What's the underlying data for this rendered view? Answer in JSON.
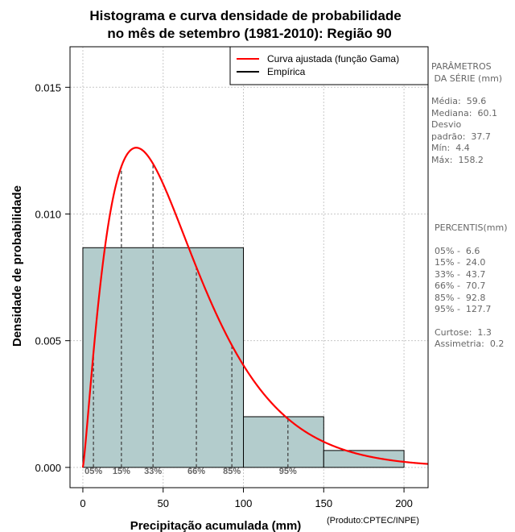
{
  "chart_data": {
    "type": "histogram",
    "title_line1": "Histograma e curva densidade de probabilidade",
    "title_line2": "no mês de setembro (1981-2010): Região 90",
    "xlabel": "Precipitação acumulada (mm)",
    "ylabel": "Densidade de probabilidade",
    "credit": "(Produto:CPTEC/INPE)",
    "xlim": [
      -8,
      215
    ],
    "ylim": [
      -0.0008,
      0.0166
    ],
    "x_ticks": [
      0,
      50,
      100,
      150,
      200
    ],
    "x_tick_labels": [
      "0",
      "50",
      "100",
      "150",
      "200"
    ],
    "y_ticks": [
      0.0,
      0.005,
      0.01,
      0.015
    ],
    "y_tick_labels": [
      "0.000",
      "0.005",
      "0.010",
      "0.015"
    ],
    "grid": true,
    "bins": [
      {
        "start": 0,
        "end": 100,
        "density": 0.00867
      },
      {
        "start": 100,
        "end": 150,
        "density": 0.002
      },
      {
        "start": 150,
        "end": 200,
        "density": 0.000667
      }
    ],
    "bin_color": "#b3cccc",
    "gamma_fit": {
      "shape": 2.26,
      "scale": 26.4,
      "color": "#ff0000"
    },
    "percentile_markers": [
      {
        "label": "05%",
        "value": 6.6
      },
      {
        "label": "15%",
        "value": 24.0
      },
      {
        "label": "33%",
        "value": 43.7
      },
      {
        "label": "66%",
        "value": 70.7
      },
      {
        "label": "85%",
        "value": 92.8
      },
      {
        "label": "95%",
        "value": 127.7
      }
    ],
    "legend": [
      {
        "label": "Curva ajustada (função Gama)",
        "color": "#ff0000"
      },
      {
        "label": "Empírica",
        "color": "#000000"
      }
    ],
    "legend_position": "top-right"
  },
  "params_panel": {
    "heading1": "PARÂMETROS",
    "heading2": " DA SÉRIE (mm)",
    "media": "Média:  59.6",
    "mediana": "Mediana:  60.1",
    "desvio1": "Desvio",
    "desvio2": "padrão:  37.7",
    "min": "Mín:  4.4",
    "max": "Máx:  158.2"
  },
  "percentis_panel": {
    "heading": "PERCENTIS(mm)",
    "p05": "05% -  6.6",
    "p15": "15% -  24.0",
    "p33": "33% -  43.7",
    "p66": "66% -  70.7",
    "p85": "85% -  92.8",
    "p95": "95% -  127.7",
    "curtose": "Curtose:  1.3",
    "assimetria": "Assimetria:  0.2"
  }
}
